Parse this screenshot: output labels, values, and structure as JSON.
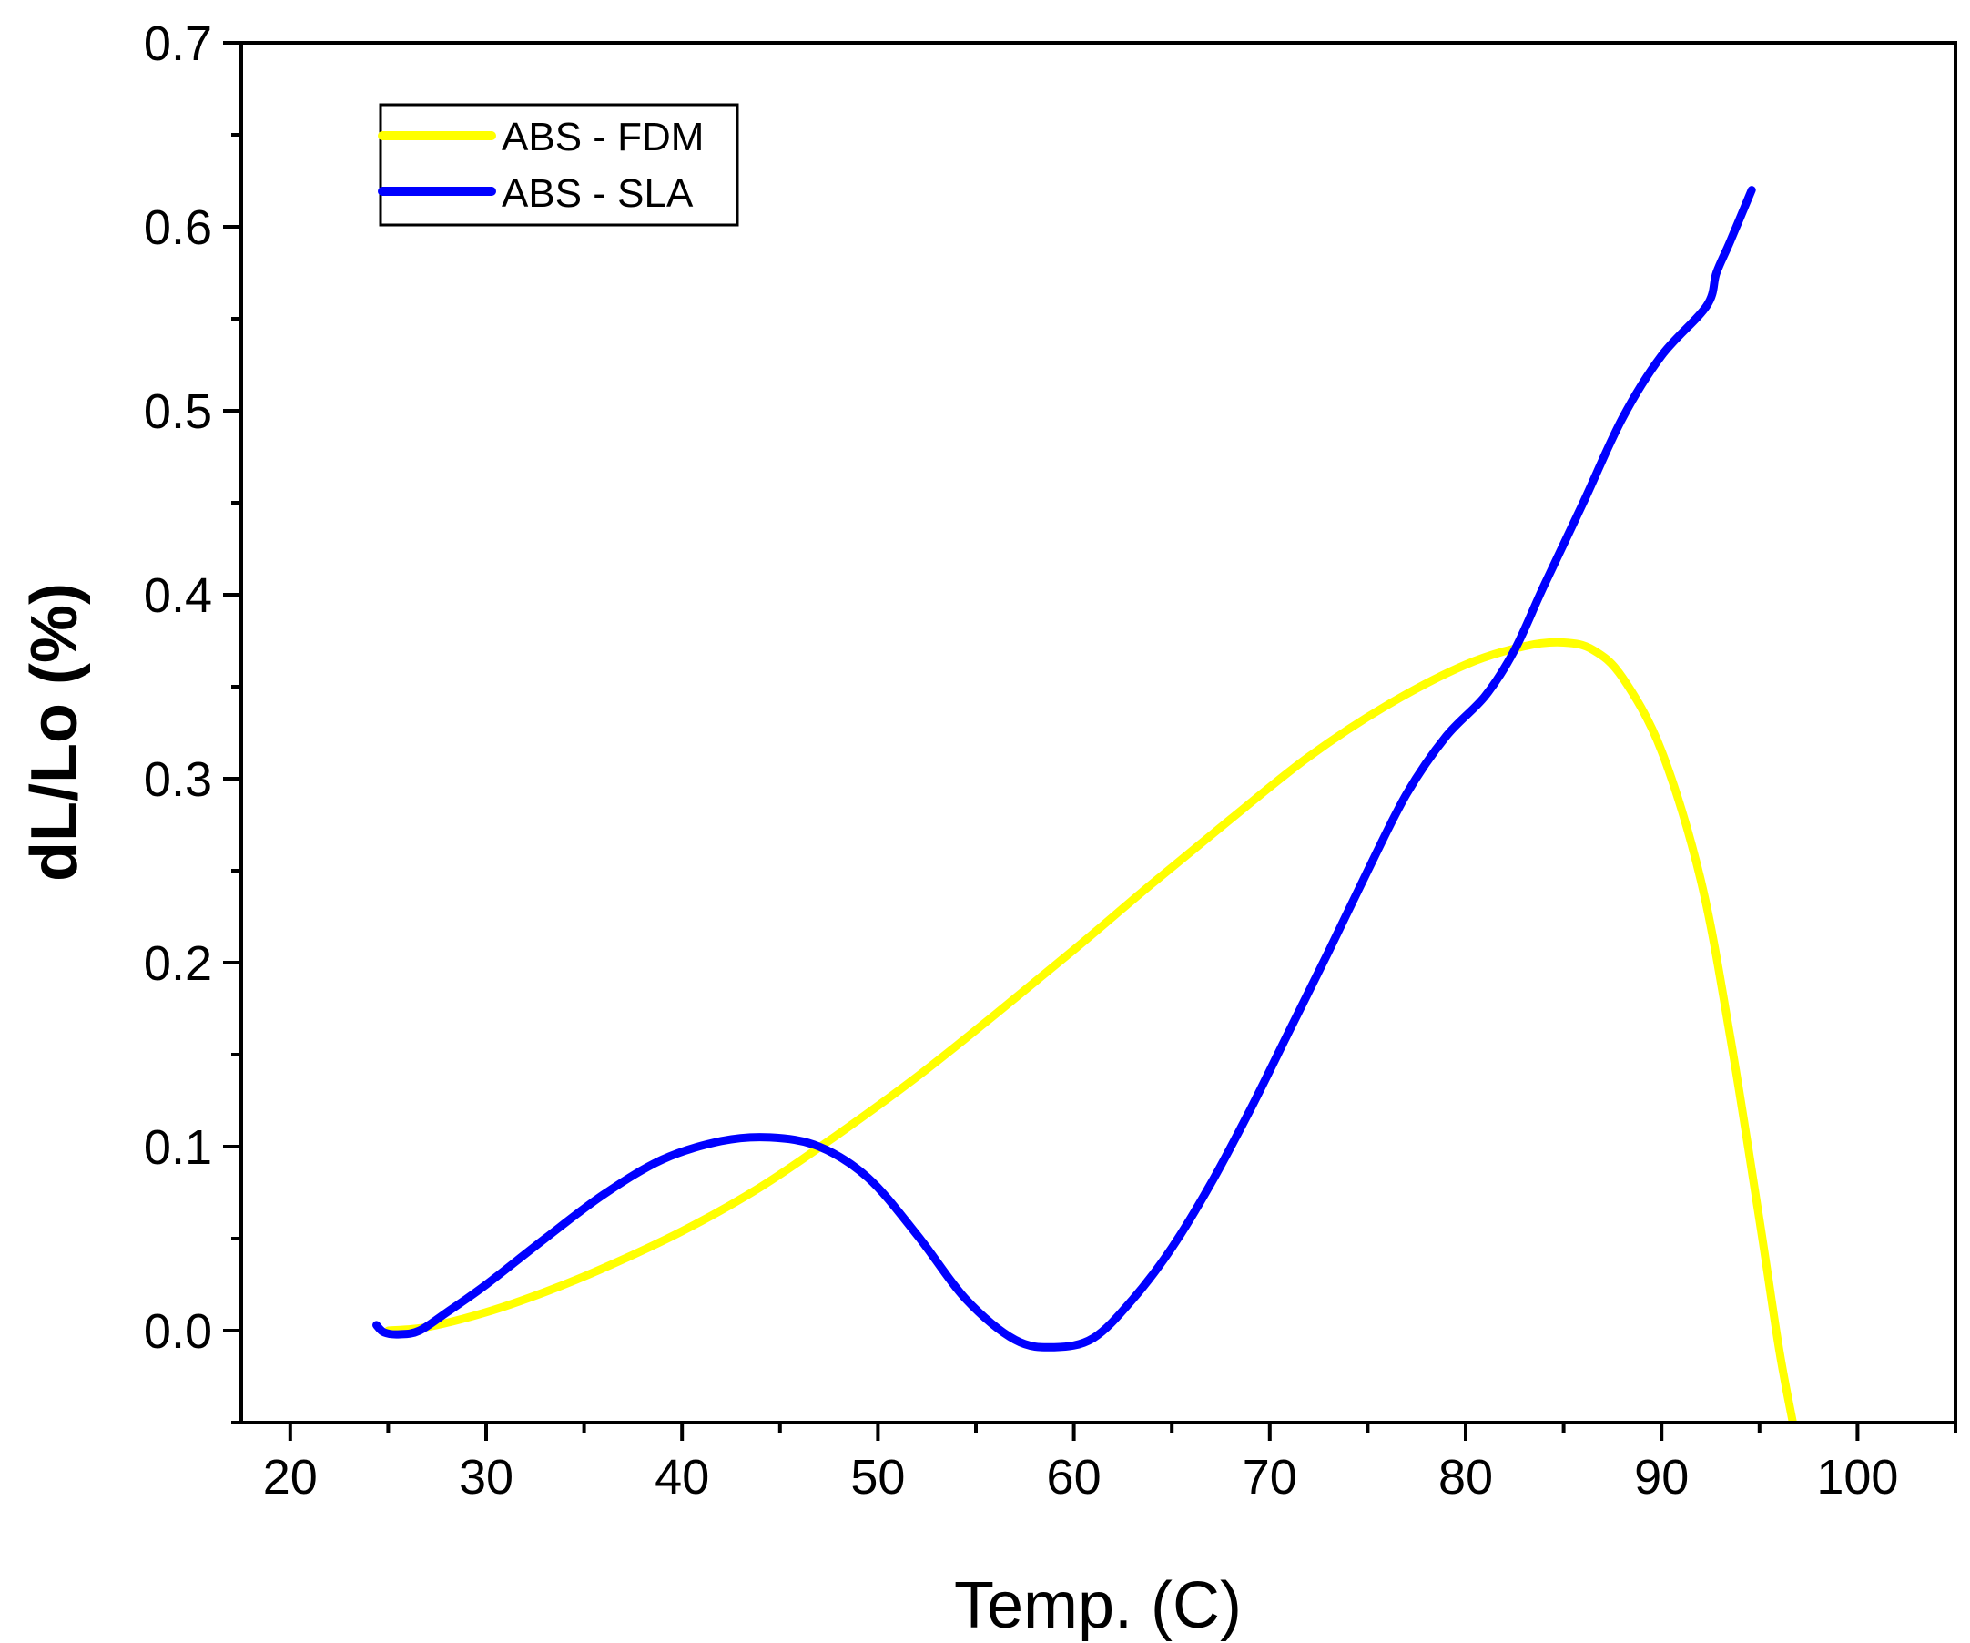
{
  "chart_data": {
    "type": "line",
    "title": "",
    "xlabel": "Temp. (C)",
    "ylabel": "dL/Lo (%)",
    "xlim": [
      17.5,
      105
    ],
    "ylim": [
      -0.05,
      0.7
    ],
    "xticks": [
      "20",
      "30",
      "40",
      "50",
      "60",
      "70",
      "80",
      "90",
      "100"
    ],
    "yticks": [
      "0.0",
      "0.1",
      "0.2",
      "0.3",
      "0.4",
      "0.5",
      "0.6",
      "0.7"
    ],
    "grid": false,
    "legend_position": "top-left",
    "series": [
      {
        "name": "ABS - FDM",
        "color": "#ffff00",
        "x": [
          25,
          27,
          30,
          33,
          36,
          40,
          44,
          48,
          52,
          56,
          60,
          64,
          68,
          72,
          76,
          80,
          83,
          85,
          86.5,
          88,
          90,
          92,
          93.5,
          95,
          96,
          96.7
        ],
        "y": [
          0.0,
          0.002,
          0.01,
          0.021,
          0.034,
          0.054,
          0.078,
          0.107,
          0.138,
          0.172,
          0.207,
          0.243,
          0.278,
          0.312,
          0.34,
          0.362,
          0.372,
          0.374,
          0.37,
          0.355,
          0.315,
          0.245,
          0.16,
          0.06,
          -0.01,
          -0.05
        ]
      },
      {
        "name": "ABS - SLA",
        "color": "#0000ff",
        "x": [
          24.4,
          24.8,
          25.6,
          26.6,
          28,
          30,
          33,
          36,
          39,
          42,
          44.5,
          47,
          49.5,
          52,
          54.5,
          57,
          59,
          61,
          63,
          65,
          67,
          69,
          71,
          73,
          75,
          77,
          79,
          81,
          82.5,
          84,
          86,
          88,
          90,
          92.3,
          92.8,
          93.5,
          94.6
        ],
        "y": [
          0.003,
          -0.001,
          -0.002,
          0.0,
          0.01,
          0.025,
          0.05,
          0.074,
          0.093,
          0.103,
          0.105,
          0.1,
          0.083,
          0.052,
          0.017,
          -0.005,
          -0.009,
          -0.004,
          0.017,
          0.045,
          0.08,
          0.12,
          0.163,
          0.206,
          0.25,
          0.292,
          0.323,
          0.345,
          0.37,
          0.405,
          0.45,
          0.496,
          0.53,
          0.557,
          0.575,
          0.592,
          0.62
        ]
      }
    ]
  }
}
